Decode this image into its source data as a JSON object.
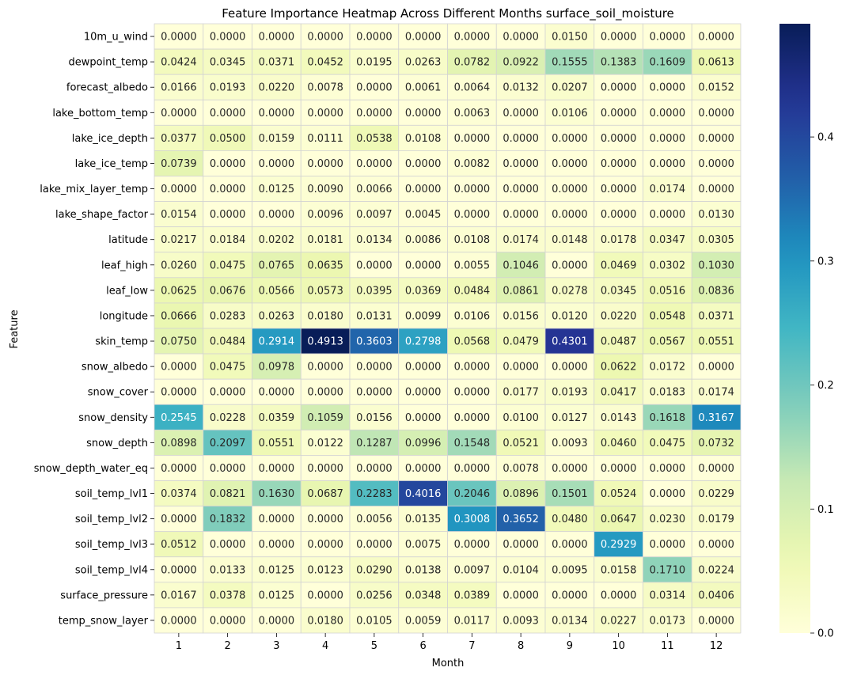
{
  "chart_data": {
    "type": "heatmap",
    "title": "Feature Importance Heatmap Across Different Months surface_soil_moisture",
    "xlabel": "Month",
    "ylabel": "Feature",
    "x": [
      "1",
      "2",
      "3",
      "4",
      "5",
      "6",
      "7",
      "8",
      "9",
      "10",
      "11",
      "12"
    ],
    "y": [
      "10m_u_wind",
      "dewpoint_temp",
      "forecast_albedo",
      "lake_bottom_temp",
      "lake_ice_depth",
      "lake_ice_temp",
      "lake_mix_layer_temp",
      "lake_shape_factor",
      "latitude",
      "leaf_high",
      "leaf_low",
      "longitude",
      "skin_temp",
      "snow_albedo",
      "snow_cover",
      "snow_density",
      "snow_depth",
      "snow_depth_water_eq",
      "soil_temp_lvl1",
      "soil_temp_lvl2",
      "soil_temp_lvl3",
      "soil_temp_lvl4",
      "surface_pressure",
      "temp_snow_layer"
    ],
    "values": [
      [
        0.0,
        0.0,
        0.0,
        0.0,
        0.0,
        0.0,
        0.0,
        0.0,
        0.015,
        0.0,
        0.0,
        0.0
      ],
      [
        0.0424,
        0.0345,
        0.0371,
        0.0452,
        0.0195,
        0.0263,
        0.0782,
        0.0922,
        0.1555,
        0.1383,
        0.1609,
        0.0613
      ],
      [
        0.0166,
        0.0193,
        0.022,
        0.0078,
        0.0,
        0.0061,
        0.0064,
        0.0132,
        0.0207,
        0.0,
        0.0,
        0.0152
      ],
      [
        0.0,
        0.0,
        0.0,
        0.0,
        0.0,
        0.0,
        0.0063,
        0.0,
        0.0106,
        0.0,
        0.0,
        0.0
      ],
      [
        0.0377,
        0.05,
        0.0159,
        0.0111,
        0.0538,
        0.0108,
        0.0,
        0.0,
        0.0,
        0.0,
        0.0,
        0.0
      ],
      [
        0.0739,
        0.0,
        0.0,
        0.0,
        0.0,
        0.0,
        0.0082,
        0.0,
        0.0,
        0.0,
        0.0,
        0.0
      ],
      [
        0.0,
        0.0,
        0.0125,
        0.009,
        0.0066,
        0.0,
        0.0,
        0.0,
        0.0,
        0.0,
        0.0174,
        0.0
      ],
      [
        0.0154,
        0.0,
        0.0,
        0.0096,
        0.0097,
        0.0045,
        0.0,
        0.0,
        0.0,
        0.0,
        0.0,
        0.013
      ],
      [
        0.0217,
        0.0184,
        0.0202,
        0.0181,
        0.0134,
        0.0086,
        0.0108,
        0.0174,
        0.0148,
        0.0178,
        0.0347,
        0.0305
      ],
      [
        0.026,
        0.0475,
        0.0765,
        0.0635,
        0.0,
        0.0,
        0.0055,
        0.1046,
        0.0,
        0.0469,
        0.0302,
        0.103
      ],
      [
        0.0625,
        0.0676,
        0.0566,
        0.0573,
        0.0395,
        0.0369,
        0.0484,
        0.0861,
        0.0278,
        0.0345,
        0.0516,
        0.0836
      ],
      [
        0.0666,
        0.0283,
        0.0263,
        0.018,
        0.0131,
        0.0099,
        0.0106,
        0.0156,
        0.012,
        0.022,
        0.0548,
        0.0371
      ],
      [
        0.075,
        0.0484,
        0.2914,
        0.4913,
        0.3603,
        0.2798,
        0.0568,
        0.0479,
        0.4301,
        0.0487,
        0.0567,
        0.0551
      ],
      [
        0.0,
        0.0475,
        0.0978,
        0.0,
        0.0,
        0.0,
        0.0,
        0.0,
        0.0,
        0.0622,
        0.0172,
        0.0
      ],
      [
        0.0,
        0.0,
        0.0,
        0.0,
        0.0,
        0.0,
        0.0,
        0.0177,
        0.0193,
        0.0417,
        0.0183,
        0.0174
      ],
      [
        0.2545,
        0.0228,
        0.0359,
        0.1059,
        0.0156,
        0.0,
        0.0,
        0.01,
        0.0127,
        0.0143,
        0.1618,
        0.3167
      ],
      [
        0.0898,
        0.2097,
        0.0551,
        0.0122,
        0.1287,
        0.0996,
        0.1548,
        0.0521,
        0.0093,
        0.046,
        0.0475,
        0.0732
      ],
      [
        0.0,
        0.0,
        0.0,
        0.0,
        0.0,
        0.0,
        0.0,
        0.0078,
        0.0,
        0.0,
        0.0,
        0.0
      ],
      [
        0.0374,
        0.0821,
        0.163,
        0.0687,
        0.2283,
        0.4016,
        0.2046,
        0.0896,
        0.1501,
        0.0524,
        0.0,
        0.0229
      ],
      [
        0.0,
        0.1832,
        0.0,
        0.0,
        0.0056,
        0.0135,
        0.3008,
        0.3652,
        0.048,
        0.0647,
        0.023,
        0.0179
      ],
      [
        0.0512,
        0.0,
        0.0,
        0.0,
        0.0,
        0.0075,
        0.0,
        0.0,
        0.0,
        0.2929,
        0.0,
        0.0
      ],
      [
        0.0,
        0.0133,
        0.0125,
        0.0123,
        0.029,
        0.0138,
        0.0097,
        0.0104,
        0.0095,
        0.0158,
        0.171,
        0.0224
      ],
      [
        0.0167,
        0.0378,
        0.0125,
        0.0,
        0.0256,
        0.0348,
        0.0389,
        0.0,
        0.0,
        0.0,
        0.0314,
        0.0406
      ],
      [
        0.0,
        0.0,
        0.0,
        0.018,
        0.0105,
        0.0059,
        0.0117,
        0.0093,
        0.0134,
        0.0227,
        0.0173,
        0.0
      ]
    ],
    "value_format": "4 decimals",
    "colormap": "YlGnBu",
    "colorbar": {
      "range": [
        0,
        0.4913
      ],
      "ticks": [
        0.0,
        0.1,
        0.2,
        0.3,
        0.4
      ],
      "tick_labels": [
        "0.0",
        "0.1",
        "0.2",
        "0.3",
        "0.4"
      ],
      "placement": "right"
    },
    "grid": true
  },
  "colors": {
    "cell_border": "#d3d3d3",
    "text_dark": "#262626",
    "text_light": "#ffffff"
  }
}
